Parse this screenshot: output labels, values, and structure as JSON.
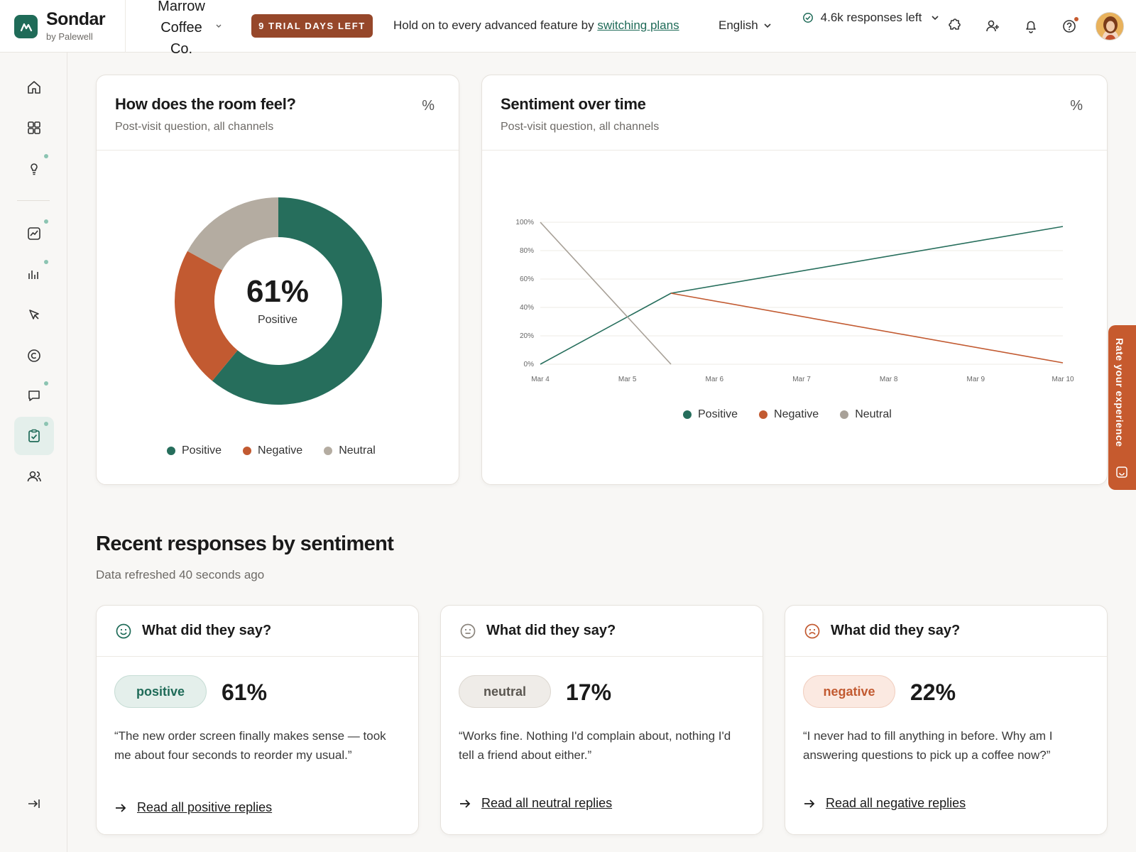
{
  "header": {
    "brand_name": "Sondar",
    "brand_sub": "by Palewell",
    "workspace": "Marrow Coffee Co.",
    "trial_badge": "9 TRIAL DAYS LEFT",
    "promo_text": "Hold on to every advanced feature by",
    "promo_link": "switching plans",
    "language": "English",
    "responses_left": "4.6k responses left",
    "icons": [
      "puzzle-icon",
      "add-user-icon",
      "bell-icon",
      "help-icon"
    ]
  },
  "sidebar": {
    "items": [
      {
        "name": "home-icon"
      },
      {
        "name": "grid-icon"
      },
      {
        "name": "lightbulb-icon"
      },
      {
        "name": "trend-icon"
      },
      {
        "name": "bar-chart-icon"
      },
      {
        "name": "cursor-icon"
      },
      {
        "name": "copyright-icon"
      },
      {
        "name": "chat-icon"
      },
      {
        "name": "clipboard-check-icon",
        "active": true
      },
      {
        "name": "users-icon"
      }
    ],
    "collapse_icon": "collapse-icon"
  },
  "room_card": {
    "title": "How does the room feel?",
    "subtitle": "Post-visit question, all channels",
    "toggle": "%",
    "center_value": "61%",
    "center_label": "Positive"
  },
  "sentiment_card": {
    "title": "Sentiment over time",
    "subtitle": "Post-visit question, all channels",
    "toggle": "%"
  },
  "chart_data": [
    {
      "type": "pie",
      "title": "How does the room feel?",
      "labels": [
        "Positive",
        "Negative",
        "Neutral"
      ],
      "values": [
        61,
        22,
        17
      ],
      "colors": [
        "#266e5c",
        "#c25a31",
        "#b4aca1"
      ],
      "legend": "bottom"
    },
    {
      "type": "line",
      "title": "Sentiment over time",
      "categories": [
        "Mar 4",
        "Mar 5",
        "Mar 6",
        "Mar 7",
        "Mar 8",
        "Mar 9",
        "Mar 10"
      ],
      "y_ticks": [
        "0%",
        "20%",
        "40%",
        "60%",
        "80%",
        "100%"
      ],
      "ylim": [
        0,
        100
      ],
      "series": [
        {
          "name": "Positive",
          "color": "#266e5c",
          "points": [
            [
              0,
              0
            ],
            [
              1.5,
              50
            ],
            [
              6,
              97
            ]
          ]
        },
        {
          "name": "Negative",
          "color": "#c25a31",
          "points": [
            [
              1.5,
              50
            ],
            [
              6,
              1
            ]
          ]
        },
        {
          "name": "Neutral",
          "color": "#a8a198",
          "points": [
            [
              0,
              100
            ],
            [
              1.5,
              0
            ]
          ]
        }
      ],
      "grid": true,
      "legend": "bottom"
    }
  ],
  "section": {
    "title": "Recent responses by sentiment",
    "subtitle": "Data refreshed 40 seconds ago"
  },
  "responses": [
    {
      "icon": "smile-icon",
      "title": "What did they say?",
      "pill": "positive",
      "percent": "61%",
      "quote": "“The new order screen finally makes sense — took me about four seconds to reorder my usual.”",
      "link": "Read all positive replies"
    },
    {
      "icon": "neutral-face-icon",
      "title": "What did they say?",
      "pill": "neutral",
      "percent": "17%",
      "quote": "“Works fine. Nothing I'd complain about, nothing I'd tell a friend about either.”",
      "link": "Read all neutral replies"
    },
    {
      "icon": "frown-icon",
      "title": "What did they say?",
      "pill": "negative",
      "percent": "22%",
      "quote": "“I never had to fill anything in before. Why am I answering questions to pick up a coffee now?”",
      "link": "Read all negative replies"
    }
  ],
  "feedback_tab": "Rate your experience"
}
